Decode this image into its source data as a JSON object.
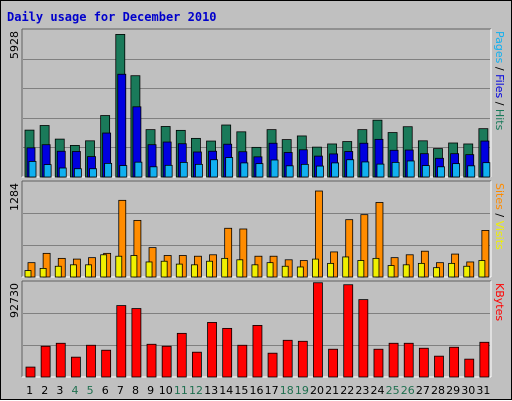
{
  "chart_data": {
    "type": "bar",
    "title": "Daily usage for December 2010",
    "colors": {
      "background": "#c0c0c0",
      "title": "#0000cc",
      "grid": "#808080",
      "hits": "#1a7a5a",
      "files": "#0000e0",
      "pages": "#10b0f0",
      "visits": "#f0f000",
      "sites": "#ff8c00",
      "kbytes": "#ff0000",
      "weekend_day": "#207050",
      "weekday": "#000000"
    },
    "days": [
      "1",
      "2",
      "3",
      "4",
      "5",
      "6",
      "7",
      "8",
      "9",
      "10",
      "11",
      "12",
      "13",
      "14",
      "15",
      "16",
      "17",
      "18",
      "19",
      "20",
      "21",
      "22",
      "23",
      "24",
      "25",
      "26",
      "27",
      "28",
      "29",
      "30",
      "31"
    ],
    "weekend_days": [
      "4",
      "5",
      "11",
      "12",
      "18",
      "19",
      "25",
      "26"
    ],
    "panels": [
      {
        "id": "hits_files_pages",
        "max_label": "5928",
        "ymax": 5928,
        "legend": [
          {
            "text": "Pages",
            "color": "#10b0f0"
          },
          {
            "text": " / ",
            "color": "#000000"
          },
          {
            "text": "Files",
            "color": "#0000e0"
          },
          {
            "text": " / ",
            "color": "#000000"
          },
          {
            "text": "Hits",
            "color": "#1a7a5a"
          }
        ],
        "series": [
          {
            "name": "Hits",
            "color": "#1a7a5a",
            "values": [
              1930,
              2120,
              1560,
              1300,
              1490,
              2530,
              5870,
              4170,
              1950,
              2080,
              1920,
              1590,
              1480,
              2140,
              1860,
              1220,
              1950,
              1540,
              1690,
              1230,
              1360,
              1460,
              1950,
              2340,
              1830,
              2070,
              1490,
              1170,
              1400,
              1360,
              1990
            ]
          },
          {
            "name": "Files",
            "color": "#0000e0",
            "values": [
              1200,
              1330,
              1060,
              1050,
              840,
              1810,
              4230,
              2890,
              1330,
              1440,
              1370,
              1030,
              1060,
              1350,
              1040,
              830,
              1390,
              1010,
              1120,
              860,
              950,
              1050,
              1390,
              1550,
              1100,
              1110,
              960,
              770,
              960,
              920,
              1480
            ]
          },
          {
            "name": "Pages",
            "color": "#10b0f0",
            "values": [
              640,
              510,
              370,
              340,
              340,
              560,
              470,
              610,
              420,
              480,
              600,
              520,
              710,
              800,
              580,
              550,
              700,
              460,
              520,
              450,
              580,
              710,
              620,
              530,
              600,
              660,
              470,
              420,
              550,
              460,
              590
            ]
          }
        ]
      },
      {
        "id": "visits_sites",
        "max_label": "1284",
        "ymax": 1284,
        "legend": [
          {
            "text": "Sites",
            "color": "#ff8c00"
          },
          {
            "text": " / ",
            "color": "#000000"
          },
          {
            "text": "Visits",
            "color": "#f0f000"
          }
        ],
        "series": [
          {
            "name": "Sites",
            "color": "#ff8c00",
            "values": [
              200,
              330,
              260,
              250,
              270,
              330,
              1070,
              790,
              410,
              300,
              300,
              290,
              310,
              680,
              670,
              290,
              290,
              240,
              230,
              1200,
              350,
              800,
              870,
              1040,
              270,
              310,
              360,
              200,
              320,
              210,
              650
            ]
          },
          {
            "name": "Visits",
            "color": "#f0f000",
            "values": [
              90,
              120,
              150,
              170,
              170,
              310,
              290,
              300,
              210,
              220,
              180,
              170,
              220,
              260,
              240,
              170,
              200,
              150,
              140,
              250,
              190,
              280,
              230,
              260,
              160,
              170,
              190,
              130,
              190,
              150,
              230
            ]
          }
        ]
      },
      {
        "id": "kbytes",
        "max_label": "92730",
        "ymax": 92730,
        "legend": [
          {
            "text": "KBytes",
            "color": "#ff0000"
          }
        ],
        "series": [
          {
            "name": "KBytes",
            "color": "#ff0000",
            "values": [
              10000,
              31000,
              34000,
              20000,
              32000,
              27000,
              72000,
              69000,
              33000,
              31000,
              44000,
              25000,
              55000,
              49000,
              32000,
              52000,
              24000,
              37000,
              36000,
              95000,
              28000,
              93000,
              78000,
              28000,
              34000,
              34000,
              29000,
              21000,
              30000,
              18000,
              35000
            ]
          }
        ]
      }
    ]
  }
}
